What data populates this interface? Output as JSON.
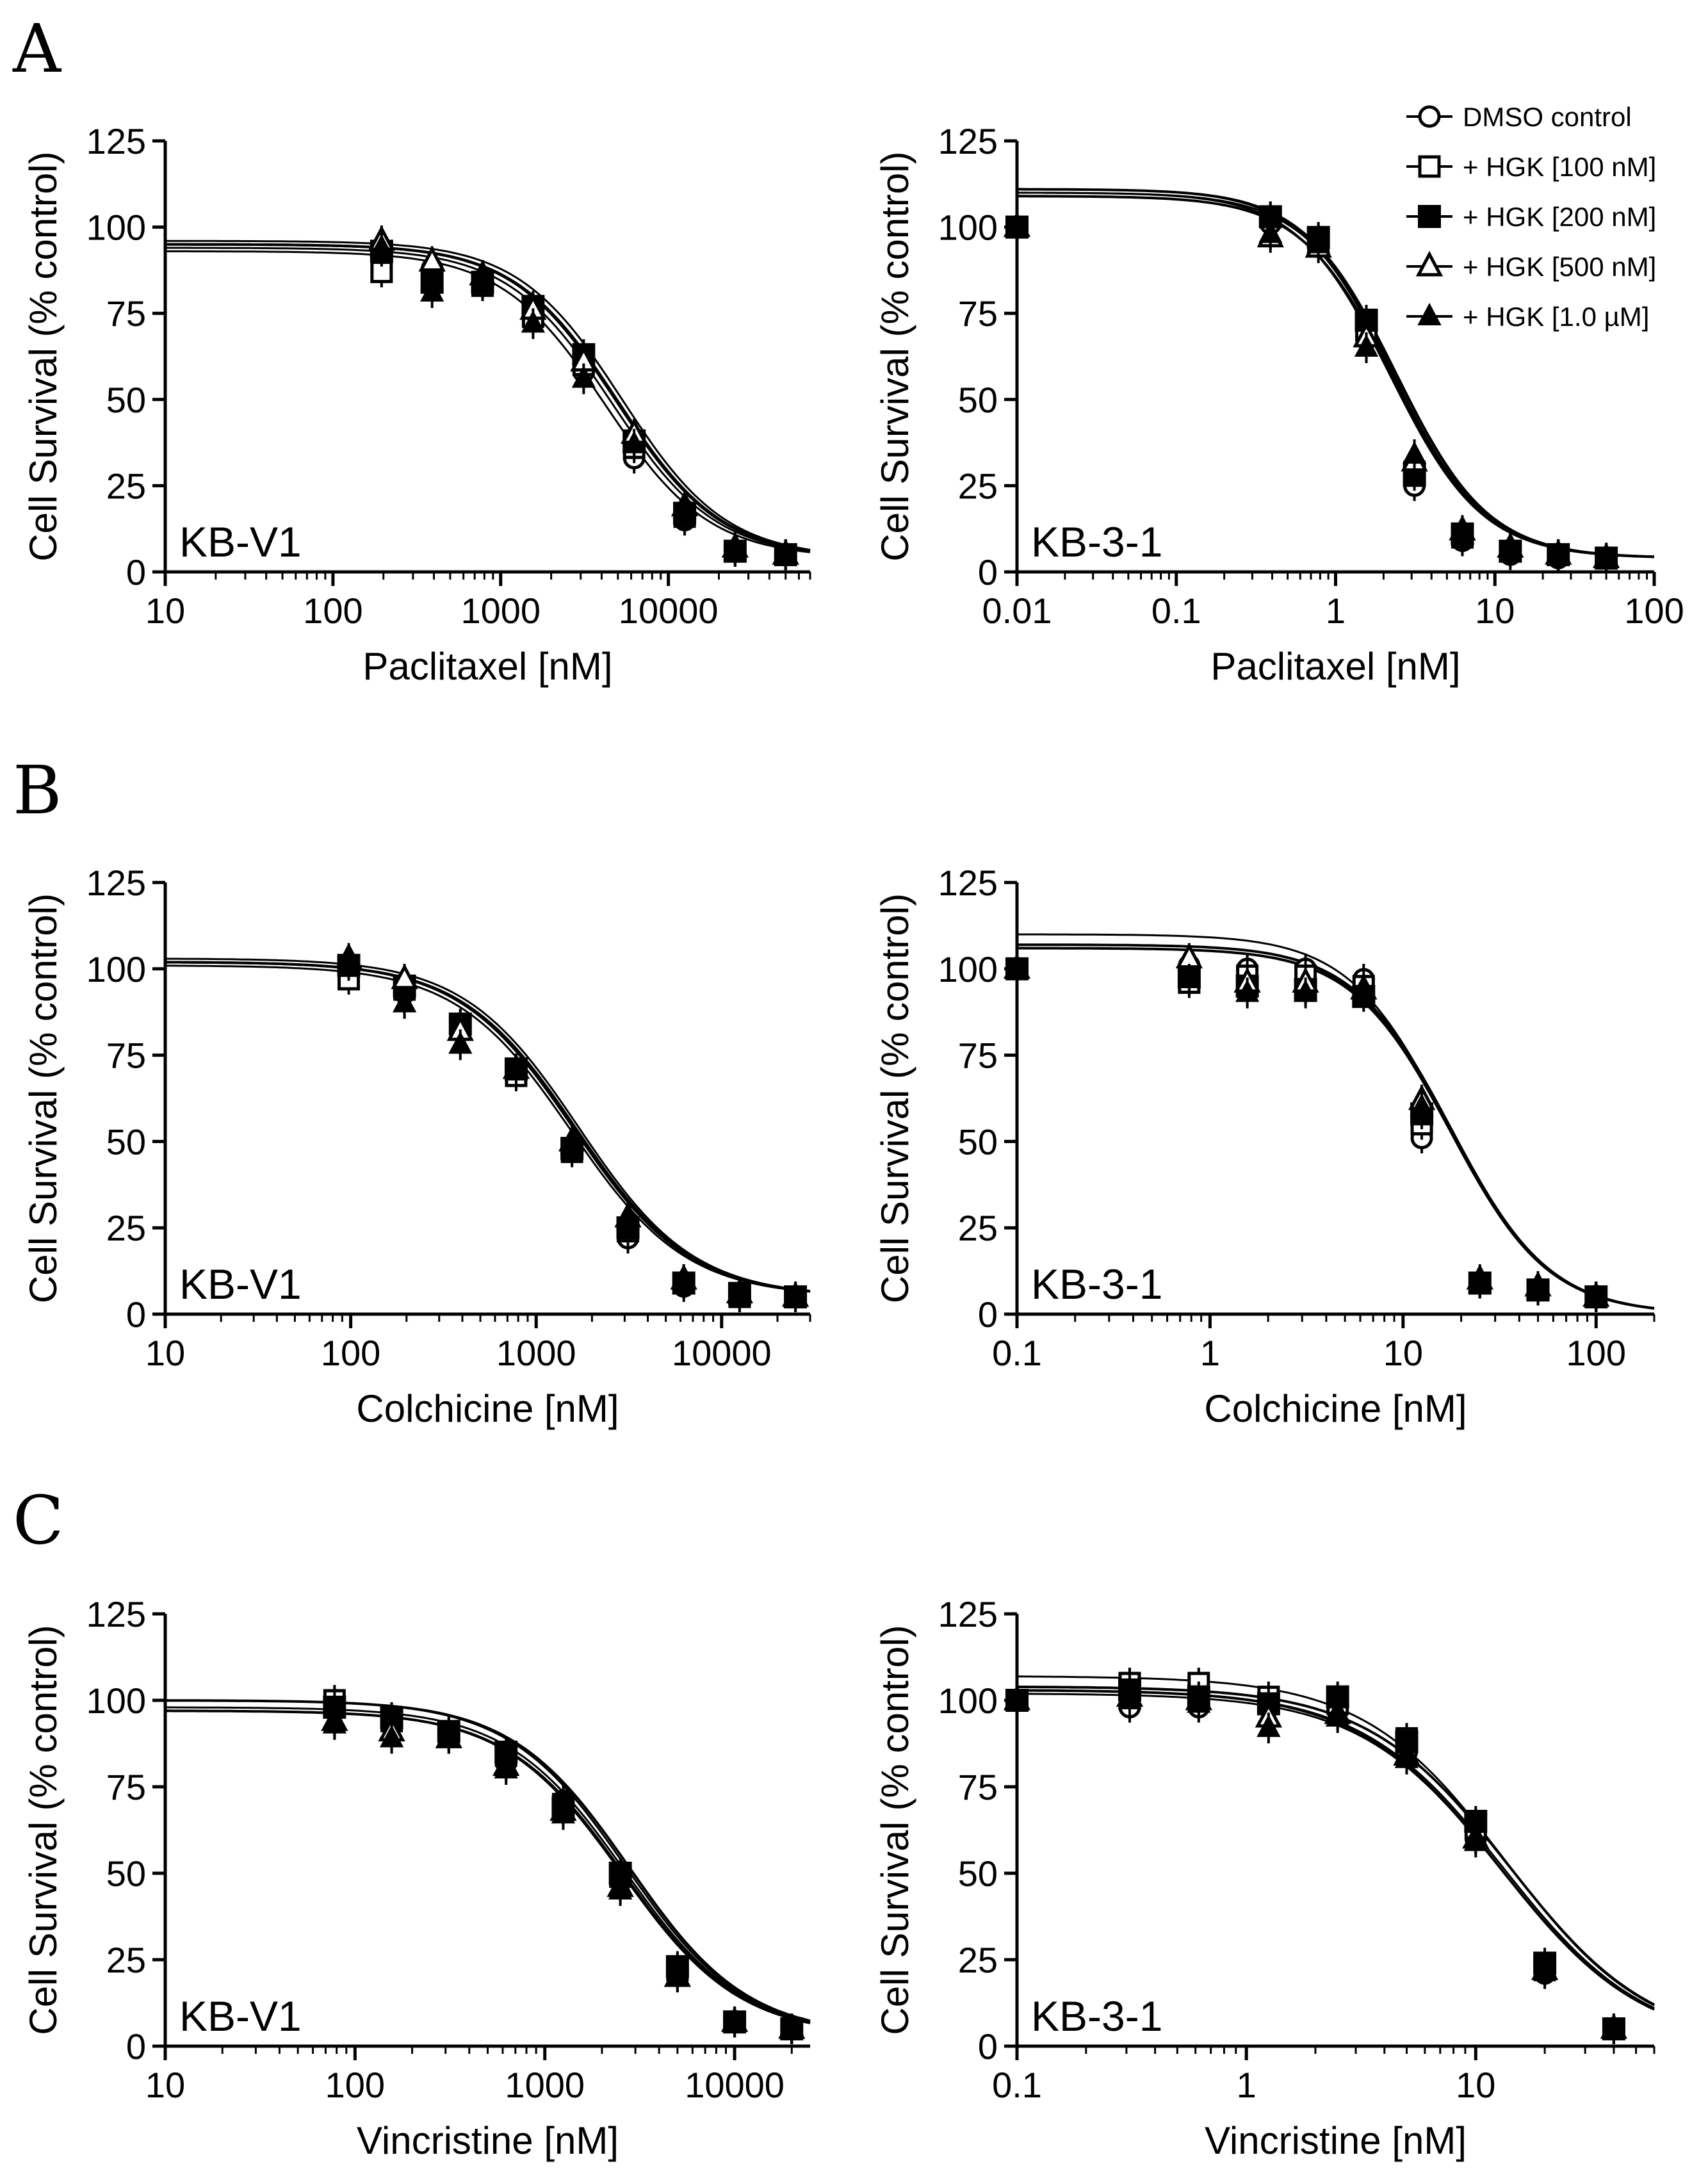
{
  "panel_labels": [
    "A",
    "B",
    "C"
  ],
  "legend": {
    "entries": [
      {
        "label": "DMSO control",
        "marker": "circle-open"
      },
      {
        "label": "+ HGK [100 nM]",
        "marker": "square-open"
      },
      {
        "label": "+ HGK [200 nM]",
        "marker": "square-filled"
      },
      {
        "label": "+ HGK [500 nM]",
        "marker": "triangle-open"
      },
      {
        "label": "+ HGK [1.0 µM]",
        "marker": "triangle-filled"
      }
    ]
  },
  "chart_data": [
    {
      "type": "scatter",
      "panel": "A",
      "label": "KB-V1",
      "xlabel": "Paclitaxel [nM]",
      "ylabel": "Cell Survival (% control)",
      "x_scale": "log",
      "xlim": [
        10,
        70000
      ],
      "x_ticks": [
        "10",
        "100",
        "1000",
        "10000"
      ],
      "ylim": [
        0,
        125
      ],
      "y_ticks": [
        "0",
        "25",
        "50",
        "75",
        "100",
        "125"
      ],
      "grid": false,
      "x": [
        195,
        390,
        780,
        1560,
        3125,
        6250,
        12500,
        25000,
        50000
      ],
      "series": [
        {
          "name": "DMSO control",
          "values": [
            92,
            88,
            84,
            75,
            58,
            33,
            15,
            6,
            5
          ]
        },
        {
          "name": "+ HGK [100 nM]",
          "values": [
            87,
            85,
            83,
            74,
            60,
            36,
            16,
            6,
            5
          ]
        },
        {
          "name": "+ HGK [200 nM]",
          "values": [
            93,
            84,
            84,
            77,
            63,
            38,
            17,
            6,
            5
          ]
        },
        {
          "name": "+ HGK [500 nM]",
          "values": [
            96,
            90,
            86,
            76,
            61,
            40,
            19,
            7,
            5
          ]
        },
        {
          "name": "+ HGK [1.0 µM]",
          "values": [
            94,
            81,
            86,
            72,
            56,
            37,
            18,
            6,
            5
          ]
        }
      ],
      "fits": [
        {
          "top": 93,
          "bottom": 4,
          "ec50": 4200,
          "hill": 1.4
        },
        {
          "top": 94,
          "bottom": 4,
          "ec50": 4600,
          "hill": 1.4
        },
        {
          "top": 95,
          "bottom": 4,
          "ec50": 4900,
          "hill": 1.4
        },
        {
          "top": 96,
          "bottom": 4,
          "ec50": 5300,
          "hill": 1.4
        },
        {
          "top": 95,
          "bottom": 4,
          "ec50": 5000,
          "hill": 1.4
        }
      ]
    },
    {
      "type": "scatter",
      "panel": "A",
      "label": "KB-3-1",
      "xlabel": "Paclitaxel [nM]",
      "ylabel": "Cell Survival (% control)",
      "x_scale": "log",
      "xlim": [
        0.01,
        100
      ],
      "x_ticks": [
        "0.01",
        "0.1",
        "1",
        "10",
        "100"
      ],
      "ylim": [
        0,
        125
      ],
      "y_ticks": [
        "0",
        "25",
        "50",
        "75",
        "100",
        "125"
      ],
      "grid": false,
      "x": [
        0.01,
        0.39,
        0.78,
        1.56,
        3.125,
        6.25,
        12.5,
        25,
        50
      ],
      "series": [
        {
          "name": "DMSO control",
          "values": [
            100,
            101,
            97,
            72,
            25,
            9,
            5,
            4,
            4
          ]
        },
        {
          "name": "+ HGK [100 nM]",
          "values": [
            100,
            103,
            96,
            70,
            29,
            10,
            6,
            5,
            4
          ]
        },
        {
          "name": "+ HGK [200 nM]",
          "values": [
            100,
            103,
            97,
            73,
            28,
            11,
            6,
            5,
            4
          ]
        },
        {
          "name": "+ HGK [500 nM]",
          "values": [
            100,
            97,
            94,
            68,
            32,
            12,
            7,
            5,
            4
          ]
        },
        {
          "name": "+ HGK [1.0 µM]",
          "values": [
            100,
            98,
            95,
            65,
            34,
            11,
            7,
            5,
            4
          ]
        }
      ],
      "fits": [
        {
          "top": 110,
          "bottom": 4,
          "ec50": 2.2,
          "hill": 1.5
        },
        {
          "top": 111,
          "bottom": 4,
          "ec50": 2.3,
          "hill": 1.5
        },
        {
          "top": 111,
          "bottom": 4,
          "ec50": 2.4,
          "hill": 1.5
        },
        {
          "top": 110,
          "bottom": 4,
          "ec50": 2.4,
          "hill": 1.5
        },
        {
          "top": 109,
          "bottom": 4,
          "ec50": 2.3,
          "hill": 1.5
        }
      ]
    },
    {
      "type": "scatter",
      "panel": "B",
      "label": "KB-V1",
      "xlabel": "Colchicine [nM]",
      "ylabel": "Cell Survival (% control)",
      "x_scale": "log",
      "xlim": [
        10,
        30000
      ],
      "x_ticks": [
        "10",
        "100",
        "1000",
        "10000"
      ],
      "ylim": [
        0,
        125
      ],
      "y_ticks": [
        "0",
        "25",
        "50",
        "75",
        "100",
        "125"
      ],
      "grid": false,
      "x": [
        97.6,
        195,
        390,
        780,
        1560,
        3125,
        6250,
        12500,
        25000
      ],
      "series": [
        {
          "name": "DMSO control",
          "values": [
            98,
            93,
            83,
            70,
            48,
            22,
            8,
            5,
            5
          ]
        },
        {
          "name": "+ HGK [100 nM]",
          "values": [
            97,
            94,
            84,
            69,
            47,
            24,
            9,
            5,
            5
          ]
        },
        {
          "name": "+ HGK [200 nM]",
          "values": [
            101,
            95,
            84,
            71,
            48,
            25,
            9,
            6,
            5
          ]
        },
        {
          "name": "+ HGK [500 nM]",
          "values": [
            103,
            97,
            82,
            71,
            50,
            28,
            10,
            6,
            5
          ]
        },
        {
          "name": "+ HGK [1.0 µM]",
          "values": [
            102,
            90,
            78,
            71,
            49,
            27,
            10,
            6,
            5
          ]
        }
      ],
      "fits": [
        {
          "top": 101,
          "bottom": 5,
          "ec50": 1550,
          "hill": 1.4
        },
        {
          "top": 102,
          "bottom": 5,
          "ec50": 1600,
          "hill": 1.4
        },
        {
          "top": 102,
          "bottom": 5,
          "ec50": 1650,
          "hill": 1.4
        },
        {
          "top": 103,
          "bottom": 5,
          "ec50": 1700,
          "hill": 1.4
        },
        {
          "top": 102,
          "bottom": 5,
          "ec50": 1650,
          "hill": 1.4
        }
      ]
    },
    {
      "type": "scatter",
      "panel": "B",
      "label": "KB-3-1",
      "xlabel": "Colchicine [nM]",
      "ylabel": "Cell Survival (% control)",
      "x_scale": "log",
      "xlim": [
        0.1,
        200
      ],
      "x_ticks": [
        "0.1",
        "1",
        "10",
        "100"
      ],
      "ylim": [
        0,
        125
      ],
      "y_ticks": [
        "0",
        "25",
        "50",
        "75",
        "100",
        "125"
      ],
      "grid": false,
      "x": [
        0.1,
        0.78,
        1.56,
        3.125,
        6.25,
        12.5,
        25,
        50,
        100
      ],
      "series": [
        {
          "name": "DMSO control",
          "values": [
            100,
            101,
            100,
            100,
            97,
            51,
            9,
            7,
            5
          ]
        },
        {
          "name": "+ HGK [100 nM]",
          "values": [
            100,
            96,
            98,
            98,
            95,
            55,
            9,
            7,
            5
          ]
        },
        {
          "name": "+ HGK [200 nM]",
          "values": [
            100,
            98,
            95,
            94,
            92,
            58,
            9,
            7,
            5
          ]
        },
        {
          "name": "+ HGK [500 nM]",
          "values": [
            100,
            103,
            96,
            96,
            94,
            62,
            10,
            8,
            5
          ]
        },
        {
          "name": "+ HGK [1.0 µM]",
          "values": [
            100,
            97,
            93,
            93,
            93,
            60,
            9,
            7,
            5
          ]
        }
      ],
      "fits": [
        {
          "top": 110,
          "bottom": 0,
          "ec50": 17,
          "hill": 1.7
        },
        {
          "top": 107,
          "bottom": 0,
          "ec50": 17.5,
          "hill": 1.7
        },
        {
          "top": 107,
          "bottom": 0,
          "ec50": 17.8,
          "hill": 1.7
        },
        {
          "top": 106,
          "bottom": 0,
          "ec50": 18,
          "hill": 1.7
        },
        {
          "top": 106,
          "bottom": 0,
          "ec50": 17.6,
          "hill": 1.7
        }
      ]
    },
    {
      "type": "scatter",
      "panel": "C",
      "label": "KB-V1",
      "xlabel": "Vincristine [nM]",
      "ylabel": "Cell Survival (% control)",
      "x_scale": "log",
      "xlim": [
        10,
        25000
      ],
      "x_ticks": [
        "10",
        "100",
        "1000",
        "10000"
      ],
      "ylim": [
        0,
        125
      ],
      "y_ticks": [
        "0",
        "25",
        "50",
        "75",
        "100",
        "125"
      ],
      "grid": false,
      "x": [
        78,
        156,
        312,
        625,
        1250,
        2500,
        5000,
        10000,
        20000
      ],
      "series": [
        {
          "name": "DMSO control",
          "values": [
            99,
            93,
            90,
            82,
            71,
            48,
            22,
            7,
            5
          ]
        },
        {
          "name": "+ HGK [100 nM]",
          "values": [
            100,
            94,
            91,
            84,
            70,
            49,
            22,
            7,
            5
          ]
        },
        {
          "name": "+ HGK [200 nM]",
          "values": [
            98,
            95,
            91,
            85,
            69,
            50,
            23,
            7,
            5
          ]
        },
        {
          "name": "+ HGK [500 nM]",
          "values": [
            94,
            91,
            89,
            81,
            68,
            46,
            20,
            7,
            5
          ]
        },
        {
          "name": "+ HGK [1.0 µM]",
          "values": [
            93,
            89,
            89,
            80,
            67,
            45,
            20,
            7,
            5
          ]
        }
      ],
      "fits": [
        {
          "top": 97,
          "bottom": 3,
          "ec50": 2600,
          "hill": 1.4
        },
        {
          "top": 100,
          "bottom": 3,
          "ec50": 2700,
          "hill": 1.4
        },
        {
          "top": 100,
          "bottom": 3,
          "ec50": 2800,
          "hill": 1.4
        },
        {
          "top": 98,
          "bottom": 3,
          "ec50": 2650,
          "hill": 1.4
        },
        {
          "top": 97,
          "bottom": 3,
          "ec50": 2550,
          "hill": 1.4
        }
      ]
    },
    {
      "type": "scatter",
      "panel": "C",
      "label": "KB-3-1",
      "xlabel": "Vincristine [nM]",
      "ylabel": "Cell Survival (% control)",
      "x_scale": "log",
      "xlim": [
        0.1,
        60
      ],
      "x_ticks": [
        "0.1",
        "1",
        "10"
      ],
      "ylim": [
        0,
        125
      ],
      "y_ticks": [
        "0",
        "25",
        "50",
        "75",
        "100",
        "125"
      ],
      "grid": false,
      "x": [
        0.1,
        0.31,
        0.62,
        1.25,
        2.5,
        5,
        10,
        20,
        40
      ],
      "series": [
        {
          "name": "DMSO control",
          "values": [
            100,
            98,
            98,
            98,
            97,
            85,
            60,
            21,
            5
          ]
        },
        {
          "name": "+ HGK [100 nM]",
          "values": [
            100,
            105,
            105,
            101,
            99,
            89,
            63,
            22,
            5
          ]
        },
        {
          "name": "+ HGK [200 nM]",
          "values": [
            100,
            103,
            101,
            99,
            101,
            88,
            65,
            24,
            5
          ]
        },
        {
          "name": "+ HGK [500 nM]",
          "values": [
            100,
            101,
            100,
            95,
            96,
            84,
            60,
            22,
            5
          ]
        },
        {
          "name": "+ HGK [1.0 µM]",
          "values": [
            100,
            100,
            99,
            92,
            95,
            83,
            59,
            22,
            5
          ]
        }
      ],
      "fits": [
        {
          "top": 102,
          "bottom": 0,
          "ec50": 13,
          "hill": 1.4
        },
        {
          "top": 107,
          "bottom": 0,
          "ec50": 13.5,
          "hill": 1.4
        },
        {
          "top": 104,
          "bottom": 0,
          "ec50": 14,
          "hill": 1.4
        },
        {
          "top": 103,
          "bottom": 0,
          "ec50": 13.2,
          "hill": 1.4
        },
        {
          "top": 103,
          "bottom": 0,
          "ec50": 12.8,
          "hill": 1.4
        }
      ]
    }
  ]
}
